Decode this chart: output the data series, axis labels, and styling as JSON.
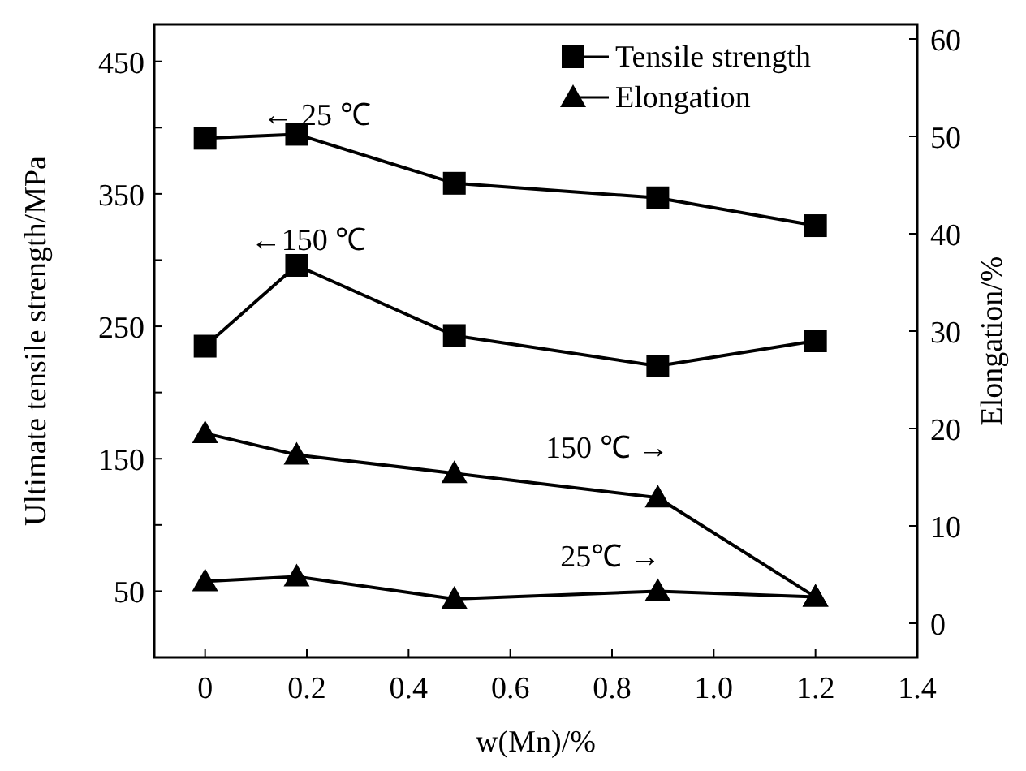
{
  "chart_data": {
    "type": "line",
    "xlabel": "w(Mn)/%",
    "ylabel": "Ultimate tensile strength/MPa",
    "y2label": "Elongation/%",
    "xlim": [
      -0.1,
      1.4
    ],
    "xticks": [
      0,
      0.2,
      0.4,
      0.6,
      0.8,
      {
        "value": 1.0,
        "label": "1.0"
      },
      1.2,
      {
        "value": 1.4,
        "label": "1.4"
      }
    ],
    "ylim": [
      0,
      478
    ],
    "yticks": [
      50,
      {
        "value": 100,
        "label": null
      },
      150,
      {
        "value": 200,
        "label": null
      },
      250,
      {
        "value": 300,
        "label": null
      },
      350,
      {
        "value": 400,
        "label": null
      },
      450
    ],
    "y2lim": [
      -3.5,
      61.5
    ],
    "y2ticks": [
      0,
      10,
      20,
      30,
      40,
      50,
      60
    ],
    "series": [
      {
        "name": "Tensile strength",
        "color": "#000000",
        "marker": "square",
        "x": [
          0,
          0.18,
          0.49,
          0.89,
          1.2
        ],
        "values": [
          392,
          395,
          358,
          347,
          326
        ]
      },
      {
        "color": "#000000",
        "marker": "square",
        "x": [
          0,
          0.18,
          0.49,
          0.89,
          1.2
        ],
        "values": [
          235,
          296,
          243,
          220,
          239
        ]
      },
      {
        "name": "Elongation",
        "color": "#000000",
        "marker": "triangle",
        "axis": "y2",
        "x": [
          0,
          0.18,
          0.49,
          0.89,
          1.2
        ],
        "values": [
          19.5,
          17.3,
          15.4,
          12.9,
          2.7
        ]
      },
      {
        "color": "#000000",
        "marker": "triangle",
        "axis": "y2",
        "x": [
          0,
          0.18,
          0.49,
          0.89,
          1.2
        ],
        "values": [
          4.3,
          4.8,
          2.5,
          3.3,
          2.7
        ]
      }
    ],
    "annotations": [
      "← 25 ℃",
      "←150 ℃",
      "150 ℃ →",
      "25℃ →"
    ],
    "legend": "top right",
    "grid": false,
    "line_style": "solid"
  }
}
